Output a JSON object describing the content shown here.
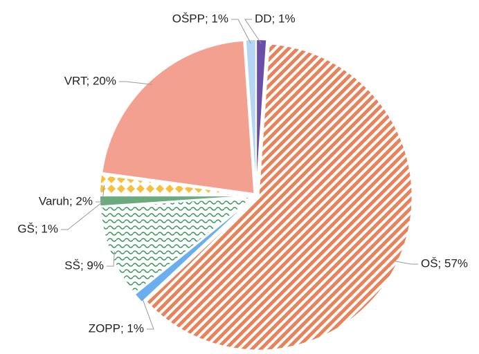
{
  "chart_data": {
    "type": "pie",
    "categories": [
      "DD; 1%",
      "OŠ; 57%",
      "ZOPP; 1%",
      "SŠ; 9%",
      "GŠ; 1%",
      "Varuh; 2%",
      "VRT; 20%",
      "OŠPP; 1%"
    ],
    "values": [
      1,
      57,
      1,
      9,
      1,
      2,
      20,
      1
    ],
    "colors": [
      "#6a4fa8",
      "#e8825a",
      "#6aaef0",
      "#3c9a60",
      "#6aaa7c",
      "#f5c040",
      "#f4a090",
      "#b4d6f4"
    ]
  }
}
